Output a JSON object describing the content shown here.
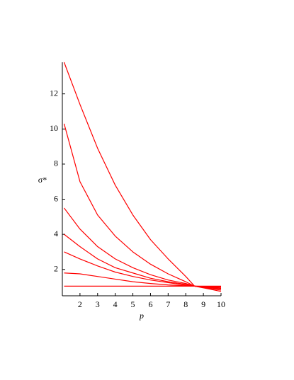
{
  "chart_data": {
    "type": "line",
    "x_label": "p",
    "y_label": "σ*",
    "x": [
      1.1,
      2,
      3,
      4,
      5,
      6,
      7,
      8,
      8.5,
      9,
      10
    ],
    "series": [
      {
        "color": "#ff0000",
        "values": [
          13.8,
          11.4,
          8.9,
          6.8,
          5.1,
          3.7,
          2.6,
          1.6,
          1.05,
          0.95,
          0.75
        ]
      },
      {
        "color": "#ff0000",
        "values": [
          10.3,
          7.0,
          5.1,
          3.9,
          3.0,
          2.3,
          1.75,
          1.3,
          1.05,
          0.97,
          0.82
        ]
      },
      {
        "color": "#ff0000",
        "values": [
          5.5,
          4.3,
          3.3,
          2.6,
          2.1,
          1.7,
          1.4,
          1.2,
          1.05,
          0.99,
          0.88
        ]
      },
      {
        "color": "#ff0000",
        "values": [
          4.0,
          3.3,
          2.6,
          2.1,
          1.8,
          1.5,
          1.3,
          1.15,
          1.05,
          1.0,
          0.92
        ]
      },
      {
        "color": "#ff0000",
        "values": [
          3.0,
          2.6,
          2.2,
          1.85,
          1.6,
          1.4,
          1.25,
          1.1,
          1.05,
          1.01,
          0.95
        ]
      },
      {
        "color": "#ff0000",
        "values": [
          1.8,
          1.75,
          1.6,
          1.45,
          1.3,
          1.2,
          1.12,
          1.07,
          1.05,
          1.03,
          1.0
        ]
      },
      {
        "color": "#ff0000",
        "values": [
          1.05,
          1.05,
          1.05,
          1.05,
          1.05,
          1.05,
          1.05,
          1.05,
          1.05,
          1.05,
          1.05
        ]
      }
    ],
    "xlim": [
      1,
      10
    ],
    "xticks": [
      2,
      3,
      4,
      5,
      6,
      7,
      8,
      9,
      10
    ],
    "ylim": [
      0.5,
      13.8
    ],
    "yticks": [
      2,
      4,
      6,
      8,
      10,
      12
    ],
    "grid": false
  }
}
